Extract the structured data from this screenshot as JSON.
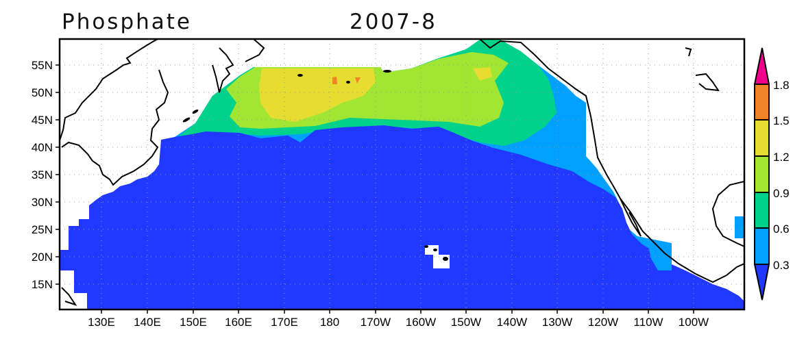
{
  "title": "Phosphate",
  "date": "2007-8",
  "map": {
    "lat_labels": [
      "55N",
      "50N",
      "45N",
      "40N",
      "35N",
      "30N",
      "25N",
      "20N",
      "15N"
    ],
    "lon_labels": [
      "130E",
      "140E",
      "150E",
      "160E",
      "170E",
      "180",
      "170W",
      "160W",
      "150W",
      "140W",
      "130W",
      "120W",
      "110W",
      "100W"
    ],
    "gridlines": true,
    "region": "North Pacific"
  },
  "colorbar": {
    "levels": [
      "0.3",
      "0.6",
      "0.9",
      "1.2",
      "1.5",
      "1.8"
    ],
    "colors": {
      "below_0.3": "#2038ff",
      "0.3-0.6": "#00a0ff",
      "0.6-0.9": "#00d28c",
      "0.9-1.2": "#a0e632",
      "1.2-1.5": "#e6dc32",
      "1.5-1.8": "#f08228",
      "above_1.8": "#f0008c"
    }
  }
}
